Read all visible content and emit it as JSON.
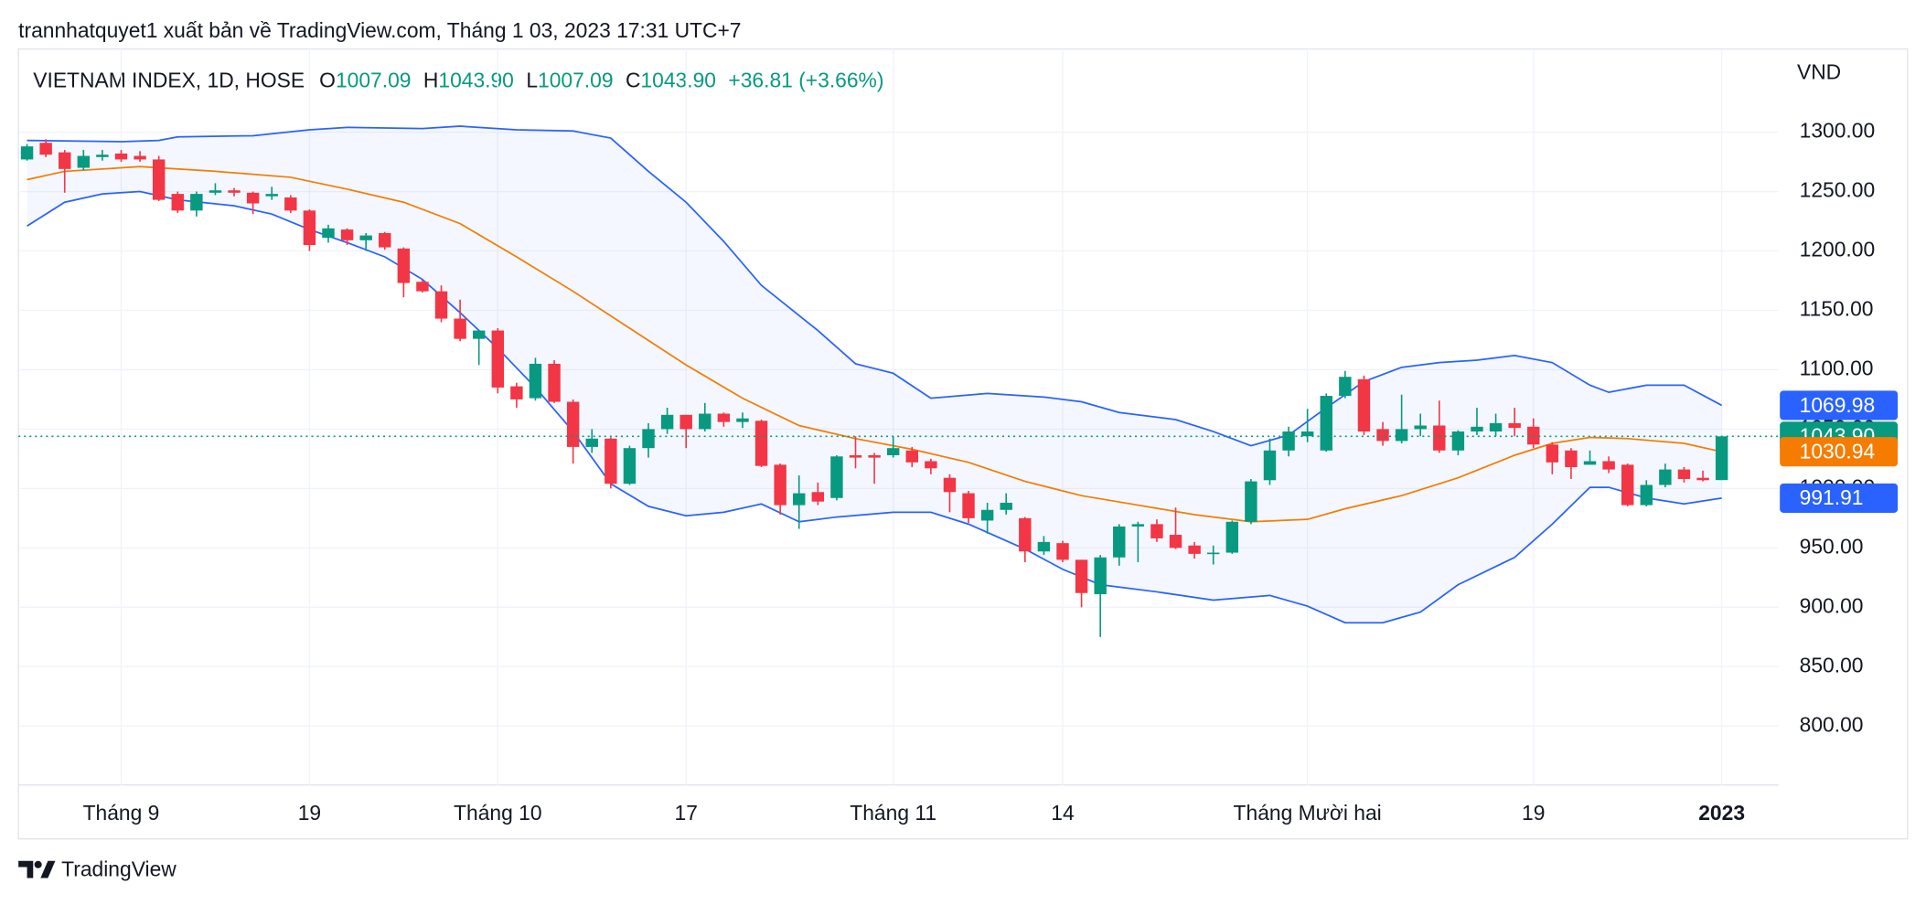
{
  "chart_data": {
    "type": "candlestick",
    "caption": "trannhatquyet1 xuất bản về TradingView.com, Tháng 1 03, 2023 17:31 UTC+7",
    "symbol": "VIETNAM INDEX, 1D, HOSE",
    "ohlc_legend": [
      {
        "key": "O",
        "value": "1007.09"
      },
      {
        "key": "H",
        "value": "1043.90"
      },
      {
        "key": "L",
        "value": "1007.09"
      },
      {
        "key": "C",
        "value": "1043.90"
      }
    ],
    "change": "+36.81 (+3.66%)",
    "y_axis_label": "VND",
    "brand": "TradingView",
    "categories": [
      null,
      null,
      null,
      null,
      null,
      "Tháng 9",
      null,
      null,
      null,
      null,
      null,
      null,
      null,
      null,
      null,
      "19",
      null,
      null,
      null,
      null,
      null,
      null,
      null,
      null,
      null,
      "Tháng 10",
      null,
      null,
      null,
      null,
      null,
      null,
      null,
      null,
      null,
      "17",
      null,
      null,
      null,
      null,
      null,
      null,
      null,
      null,
      null,
      null,
      "Tháng 11",
      null,
      null,
      null,
      null,
      null,
      null,
      null,
      null,
      "14",
      null,
      null,
      null,
      null,
      null,
      null,
      null,
      null,
      null,
      null,
      null,
      null,
      "Tháng Mười hai",
      null,
      null,
      null,
      null,
      null,
      null,
      null,
      null,
      null,
      null,
      null,
      "19",
      null,
      null,
      null,
      null,
      null,
      null,
      null,
      null,
      null,
      "2023"
    ],
    "candles": {
      "up_color": "#089981",
      "down_color": "#f23645",
      "open": [
        1277,
        1291,
        1283,
        1270,
        1279,
        1282,
        1280,
        1277,
        1248,
        1234,
        1249,
        1251,
        1249,
        1246,
        1245,
        1234,
        1211,
        1218,
        1209,
        1215,
        1202,
        1174,
        1166,
        1143,
        1126,
        1133,
        1086,
        1076,
        1105,
        1073,
        1035,
        1042,
        1004,
        1034,
        1050,
        1062,
        1050,
        1063,
        1056,
        1057,
        1020,
        986,
        997,
        992,
        1028,
        1028,
        1028,
        1032,
        1023,
        1009,
        996,
        973,
        982,
        975,
        947,
        954,
        940,
        911,
        942,
        968,
        970,
        961,
        952,
        945,
        946,
        972,
        1007,
        1032,
        1044,
        1032,
        1078,
        1092,
        1050,
        1040,
        1050,
        1053,
        1032,
        1048,
        1048,
        1055,
        1052,
        1037,
        1032,
        1020,
        1023,
        1020,
        986,
        1003,
        1016,
        1009,
        1007.09
      ],
      "high": [
        1290,
        1294,
        1285,
        1285,
        1285,
        1285,
        1284,
        1280,
        1250,
        1250,
        1257,
        1253,
        1250,
        1254,
        1247,
        1235,
        1222,
        1219,
        1215,
        1216,
        1203,
        1176,
        1171,
        1159,
        1133,
        1135,
        1089,
        1110,
        1108,
        1075,
        1050,
        1043,
        1036,
        1055,
        1068,
        1062,
        1072,
        1064,
        1064,
        1058,
        1021,
        1011,
        1005,
        1028,
        1044,
        1030,
        1044,
        1035,
        1025,
        1012,
        998,
        988,
        996,
        976,
        960,
        956,
        940,
        944,
        970,
        972,
        974,
        984,
        955,
        952,
        973,
        1008,
        1042,
        1052,
        1067,
        1080,
        1099,
        1095,
        1056,
        1079,
        1063,
        1074,
        1049,
        1068,
        1063,
        1068,
        1059,
        1039,
        1034,
        1032,
        1027,
        1021,
        1007,
        1021,
        1018,
        1015,
        1043.9
      ],
      "low": [
        1276,
        1279,
        1249,
        1268,
        1276,
        1275,
        1275,
        1242,
        1232,
        1229,
        1247,
        1246,
        1231,
        1243,
        1232,
        1200,
        1207,
        1205,
        1200,
        1201,
        1161,
        1165,
        1140,
        1124,
        1104,
        1080,
        1068,
        1074,
        1072,
        1021,
        1030,
        1000,
        1003,
        1026,
        1046,
        1034,
        1048,
        1052,
        1051,
        1018,
        978,
        966,
        986,
        990,
        1017,
        1004,
        1026,
        1018,
        1012,
        980,
        971,
        962,
        978,
        938,
        944,
        938,
        900,
        875,
        935,
        938,
        955,
        949,
        941,
        936,
        945,
        970,
        1003,
        1027,
        1039,
        1031,
        1076,
        1045,
        1036,
        1038,
        1044,
        1030,
        1028,
        1045,
        1044,
        1044,
        1034,
        1012,
        1008,
        1020,
        1013,
        985,
        985,
        1001,
        1005,
        1006,
        1007.09
      ],
      "close": [
        1288,
        1281,
        1269,
        1280,
        1281,
        1277,
        1277,
        1243,
        1234,
        1248,
        1251,
        1249,
        1240,
        1248,
        1234,
        1205,
        1219,
        1209,
        1213,
        1203,
        1173,
        1166,
        1143,
        1126,
        1133,
        1085,
        1075,
        1105,
        1073,
        1035,
        1042,
        1004,
        1034,
        1050,
        1062,
        1050,
        1063,
        1056,
        1059,
        1019,
        986,
        996,
        989,
        1027,
        1026,
        1026,
        1034,
        1022,
        1017,
        997,
        975,
        982,
        988,
        947,
        955,
        940,
        912,
        942,
        968,
        970,
        958,
        950,
        945,
        946,
        972,
        1006,
        1032,
        1048,
        1048,
        1078,
        1094,
        1048,
        1040,
        1050,
        1053,
        1032,
        1048,
        1052,
        1055,
        1051,
        1037,
        1022,
        1018,
        1023,
        1016,
        986,
        1003,
        1016,
        1008,
        1007,
        1043.9
      ],
      "close_label": "1043.90"
    },
    "series": [
      {
        "color": "#2962ff",
        "value_label": "1069.98",
        "x": [
          0,
          5,
          7,
          8,
          12,
          15,
          17,
          21,
          23,
          26,
          29,
          31,
          33,
          35,
          37,
          39,
          42,
          44,
          46,
          48,
          51,
          54,
          56,
          58,
          61,
          63,
          65,
          67,
          69,
          71,
          73,
          75,
          77,
          79,
          81,
          83,
          84,
          86,
          88,
          90
        ],
        "values": [
          1293,
          1292,
          1293,
          1296,
          1297,
          1302,
          1304,
          1303,
          1305,
          1302,
          1301,
          1295,
          1267,
          1241,
          1208,
          1171,
          1133,
          1105,
          1097,
          1076,
          1080,
          1077,
          1073,
          1064,
          1058,
          1048,
          1036,
          1045,
          1068,
          1090,
          1102,
          1106,
          1108,
          1112,
          1106,
          1087,
          1081,
          1087,
          1087,
          1069.98
        ]
      },
      {
        "color": "#f57c00",
        "value_label": "1030.94",
        "x": [
          0,
          2,
          6,
          10,
          14,
          17,
          20,
          23,
          26,
          29,
          32,
          35,
          38,
          41,
          44,
          47,
          50,
          53,
          56,
          59,
          62,
          65,
          68,
          70,
          73,
          76,
          79,
          81,
          83,
          85,
          88,
          90
        ],
        "values": [
          1260,
          1267,
          1271,
          1267,
          1262,
          1252,
          1241,
          1223,
          1195,
          1166,
          1135,
          1104,
          1076,
          1053,
          1042,
          1033,
          1022,
          1006,
          994,
          986,
          978,
          972,
          974,
          983,
          994,
          1009,
          1028,
          1038,
          1043,
          1042,
          1038,
          1030.94
        ]
      },
      {
        "color": "#2962ff",
        "value_label": "991.91",
        "x": [
          0,
          2,
          4,
          6,
          8,
          11,
          13,
          15,
          17,
          19,
          21,
          23,
          25,
          27,
          29,
          31,
          33,
          35,
          37,
          39,
          41,
          43,
          46,
          48,
          50,
          53,
          55,
          57,
          60,
          63,
          66,
          68,
          70,
          72,
          74,
          76,
          79,
          81,
          83,
          84,
          86,
          88,
          90
        ],
        "values": [
          1221,
          1241,
          1248,
          1250,
          1243,
          1238,
          1231,
          1218,
          1207,
          1195,
          1176,
          1148,
          1118,
          1085,
          1048,
          1004,
          985,
          977,
          980,
          987,
          972,
          976,
          980,
          980,
          970,
          949,
          932,
          919,
          913,
          906,
          910,
          901,
          887,
          887,
          896,
          919,
          942,
          970,
          1001,
          1001,
          992,
          987,
          991.91
        ]
      }
    ],
    "band_fill": "#2962ff",
    "ylim": [
      750,
      1370
    ],
    "yticks": [
      {
        "value": 800,
        "label": "800.00"
      },
      {
        "value": 850,
        "label": "850.00"
      },
      {
        "value": 900,
        "label": "900.00"
      },
      {
        "value": 950,
        "label": "950.00"
      },
      {
        "value": 1000,
        "label": "1000.00"
      },
      {
        "value": 1050,
        "label": "1050.00"
      },
      {
        "value": 1100,
        "label": "1100.00"
      },
      {
        "value": 1150,
        "label": "1150.00"
      },
      {
        "value": 1200,
        "label": "1200.00"
      },
      {
        "value": 1250,
        "label": "1250.00"
      },
      {
        "value": 1300,
        "label": "1300.00"
      }
    ],
    "grid": true
  }
}
